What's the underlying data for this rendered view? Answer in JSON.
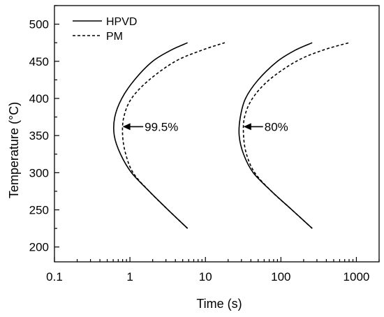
{
  "chart_data": {
    "type": "line",
    "xlabel": "Time (s)",
    "ylabel": "Temperature (°C)",
    "x_scale": "log",
    "xlim": [
      0.1,
      2000
    ],
    "ylim": [
      180,
      525
    ],
    "x_ticks": [
      {
        "value": 0.1,
        "label": "0.1"
      },
      {
        "value": 1,
        "label": "1"
      },
      {
        "value": 10,
        "label": "10"
      },
      {
        "value": 100,
        "label": "100"
      },
      {
        "value": 1000,
        "label": "1000"
      }
    ],
    "y_ticks": [
      {
        "value": 200,
        "label": "200"
      },
      {
        "value": 250,
        "label": "250"
      },
      {
        "value": 300,
        "label": "300"
      },
      {
        "value": 350,
        "label": "350"
      },
      {
        "value": 400,
        "label": "400"
      },
      {
        "value": 450,
        "label": "450"
      },
      {
        "value": 500,
        "label": "500"
      }
    ],
    "grid": false,
    "legend_position": "top-left",
    "series": [
      {
        "name": "HPVD",
        "style": "solid",
        "x": [
          5.8,
          3.2,
          1.8,
          1.05,
          0.75,
          0.62,
          0.63,
          0.78,
          1.15,
          2.0,
          3.5,
          5.8
        ],
        "y": [
          225,
          250,
          275,
          300,
          325,
          350,
          375,
          400,
          425,
          450,
          465,
          475
        ]
      },
      {
        "name": "PM",
        "style": "dashed",
        "x": [
          5.8,
          3.2,
          1.8,
          1.1,
          0.88,
          0.8,
          0.83,
          1.05,
          1.8,
          4.0,
          9.0,
          18.0
        ],
        "y": [
          225,
          250,
          275,
          300,
          325,
          350,
          375,
          400,
          425,
          450,
          465,
          475
        ]
      },
      {
        "name": "HPVD",
        "style": "solid",
        "x": [
          260,
          140,
          75,
          43,
          32,
          28,
          29,
          34,
          50,
          90,
          155,
          260
        ],
        "y": [
          225,
          250,
          275,
          300,
          325,
          350,
          375,
          400,
          425,
          450,
          465,
          475
        ]
      },
      {
        "name": "PM",
        "style": "dashed",
        "x": [
          260,
          140,
          75,
          45,
          35,
          32,
          33,
          42,
          70,
          160,
          360,
          800
        ],
        "y": [
          225,
          250,
          275,
          300,
          325,
          350,
          375,
          400,
          425,
          450,
          465,
          475
        ]
      }
    ],
    "annotations": [
      {
        "text": "99.5%",
        "arrow_to": {
          "x": 0.8,
          "y": 362
        },
        "arrow_from": {
          "x": 1.5,
          "y": 362
        }
      },
      {
        "text": "80%",
        "arrow_to": {
          "x": 32,
          "y": 362
        },
        "arrow_from": {
          "x": 58,
          "y": 362
        }
      }
    ]
  }
}
